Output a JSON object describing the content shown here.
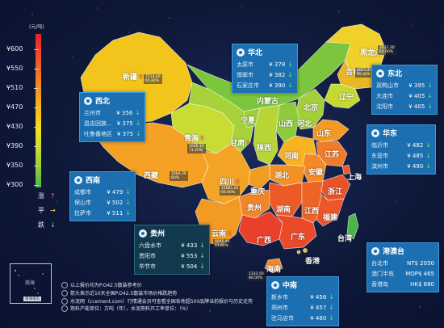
{
  "legend": {
    "unit": "(元/吨)",
    "ticks": [
      "¥600",
      "¥550",
      "¥510",
      "¥470",
      "¥430",
      "¥390",
      "¥350",
      "¥300"
    ],
    "trend": [
      {
        "label": "涨",
        "symbol": "↑",
        "kind": "up"
      },
      {
        "label": "平",
        "symbol": "→",
        "kind": "flat"
      },
      {
        "label": "跌",
        "symbol": "↓",
        "kind": "down"
      }
    ],
    "colors": {
      "high": "#e8202a",
      "mid": "#f5901e",
      "low": "#4cb44a"
    }
  },
  "cards": {
    "xibei": {
      "title": "西北",
      "rows": [
        {
          "city": "兰州市",
          "price": "¥ 356",
          "trend": "↓"
        },
        {
          "city": "昌吉回族...",
          "price": "¥ 375",
          "trend": "↓"
        },
        {
          "city": "吐鲁番地区",
          "price": "¥ 375",
          "trend": "↓"
        }
      ]
    },
    "huabei": {
      "title": "华北",
      "rows": [
        {
          "city": "太原市",
          "price": "¥ 378",
          "trend": "↓"
        },
        {
          "city": "邯郸市",
          "price": "¥ 382",
          "trend": "↓"
        },
        {
          "city": "石家庄市",
          "price": "¥ 390",
          "trend": "↓"
        }
      ]
    },
    "dongbei": {
      "title": "东北",
      "rows": [
        {
          "city": "双鸭山市",
          "price": "¥ 395",
          "trend": "↓"
        },
        {
          "city": "大连市",
          "price": "¥ 405",
          "trend": "↓"
        },
        {
          "city": "沈阳市",
          "price": "¥ 405",
          "trend": "↓"
        }
      ]
    },
    "huadong": {
      "title": "华东",
      "rows": [
        {
          "city": "临沂市",
          "price": "¥ 482",
          "trend": "↓"
        },
        {
          "city": "东营市",
          "price": "¥ 485",
          "trend": "↓"
        },
        {
          "city": "滨州市",
          "price": "¥ 490",
          "trend": "↓"
        }
      ]
    },
    "xinan": {
      "title": "西南",
      "rows": [
        {
          "city": "成都市",
          "price": "¥ 479",
          "trend": "↓"
        },
        {
          "city": "保山市",
          "price": "¥ 502",
          "trend": "↓"
        },
        {
          "city": "拉萨市",
          "price": "¥ 511",
          "trend": "↓"
        }
      ]
    },
    "guizhou": {
      "title": "贵州",
      "rows": [
        {
          "city": "六盘水市",
          "price": "¥ 433",
          "trend": "↓"
        },
        {
          "city": "贵阳市",
          "price": "¥ 553",
          "trend": "↓"
        },
        {
          "city": "毕节市",
          "price": "¥ 504",
          "trend": "↓"
        }
      ]
    },
    "zhongnan": {
      "title": "中南",
      "rows": [
        {
          "city": "新乡市",
          "price": "¥ 456",
          "trend": "↓"
        },
        {
          "city": "郑州市",
          "price": "¥ 457",
          "trend": "↓"
        },
        {
          "city": "驻马店市",
          "price": "¥ 460",
          "trend": "↓"
        }
      ]
    },
    "gangaotai": {
      "title": "港澳台",
      "rows": [
        {
          "city": "台北市",
          "price": "NT$ 2050",
          "trend": ""
        },
        {
          "city": "澳门半岛",
          "price": "MOP$ 465",
          "trend": ""
        },
        {
          "city": "香港岛",
          "price": "HK$ 680",
          "trend": ""
        }
      ]
    }
  },
  "provinces": [
    {
      "name": "新疆",
      "trend": "↑",
      "kind": "up"
    },
    {
      "name": "西藏",
      "trend": "",
      "kind": ""
    },
    {
      "name": "青海",
      "trend": "↑",
      "kind": "up"
    },
    {
      "name": "甘肃",
      "trend": "↑",
      "kind": "up"
    },
    {
      "name": "内蒙古",
      "trend": "",
      "kind": ""
    },
    {
      "name": "黑龙江",
      "trend": "↑",
      "kind": "up"
    },
    {
      "name": "吉林",
      "trend": "↑",
      "kind": "up"
    },
    {
      "name": "辽宁",
      "trend": "",
      "kind": ""
    },
    {
      "name": "北京",
      "trend": "",
      "kind": ""
    },
    {
      "name": "河北",
      "trend": "",
      "kind": ""
    },
    {
      "name": "山西",
      "trend": "",
      "kind": ""
    },
    {
      "name": "山东",
      "trend": "",
      "kind": ""
    },
    {
      "name": "陕西",
      "trend": "",
      "kind": ""
    },
    {
      "name": "河南",
      "trend": "",
      "kind": ""
    },
    {
      "name": "宁夏",
      "trend": "",
      "kind": ""
    },
    {
      "name": "四川",
      "trend": "↑",
      "kind": "up"
    },
    {
      "name": "重庆",
      "trend": "",
      "kind": ""
    },
    {
      "name": "湖北",
      "trend": "",
      "kind": ""
    },
    {
      "name": "安徽",
      "trend": "",
      "kind": ""
    },
    {
      "name": "江苏",
      "trend": "",
      "kind": ""
    },
    {
      "name": "上海",
      "trend": "",
      "kind": ""
    },
    {
      "name": "浙江",
      "trend": "",
      "kind": ""
    },
    {
      "name": "湖南",
      "trend": "",
      "kind": ""
    },
    {
      "name": "江西",
      "trend": "",
      "kind": ""
    },
    {
      "name": "福建",
      "trend": "",
      "kind": ""
    },
    {
      "name": "贵州",
      "trend": "",
      "kind": ""
    },
    {
      "name": "云南",
      "trend": "↑",
      "kind": "up"
    },
    {
      "name": "广西",
      "trend": "",
      "kind": ""
    },
    {
      "name": "广东",
      "trend": "",
      "kind": ""
    },
    {
      "name": "海南",
      "trend": "",
      "kind": ""
    },
    {
      "name": "香港",
      "trend": "",
      "kind": ""
    },
    {
      "name": "台湾",
      "trend": "",
      "kind": ""
    }
  ],
  "mini_values": [
    {
      "province": "新疆",
      "lines": [
        "7514.40",
        "65.80%"
      ]
    },
    {
      "province": "黑龙江",
      "lines": [
        "2011.30",
        "65.00%"
      ]
    },
    {
      "province": "吉林",
      "lines": [
        "4001.40",
        "65.80%"
      ]
    },
    {
      "province": "青海",
      "lines": [
        "1646.19",
        "71.20%"
      ]
    },
    {
      "province": "西藏",
      "lines": [
        "1064.39",
        "60%"
      ]
    },
    {
      "province": "四川",
      "lines": [
        "15681.05",
        "60.00%"
      ]
    },
    {
      "province": "云南",
      "lines": [
        "8860.46",
        "61.00%"
      ]
    },
    {
      "province": "海南",
      "lines": [
        "1333.50",
        "80.00%"
      ]
    }
  ],
  "inset": {
    "label": "南海",
    "tag": "南海诸岛"
  },
  "notes": [
    "以上报价均为P.O42.5散装参考价",
    "箭头表示近10天全国P.O42.5散装市场价格跌趋势",
    "水泥网（ccement.com）行情通会员可查看全国各地超500品牌当前报价与历史走势",
    "熟料产能单位：万吨（年），水泥熟料开工率单位：（%）"
  ]
}
